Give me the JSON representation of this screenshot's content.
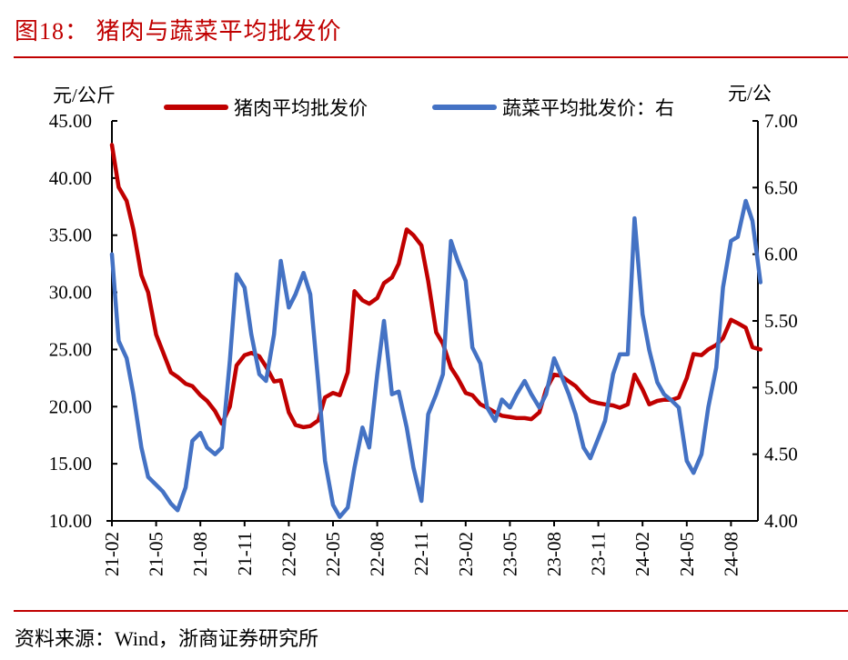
{
  "header": {
    "title": "图18：  猪肉与蔬菜平均批发价"
  },
  "footer": {
    "source": "资料来源：Wind，浙商证券研究所"
  },
  "colors": {
    "accent": "#C00000",
    "pork": "#C00000",
    "vegetable": "#4472C4"
  },
  "chart_data": {
    "type": "line",
    "title": "猪肉与蔬菜平均批发价",
    "y_left": {
      "unit_label": "元/公斤",
      "range": [
        10,
        45
      ],
      "ticks": [
        "10.00",
        "15.00",
        "20.00",
        "25.00",
        "30.00",
        "35.00",
        "40.00",
        "45.00"
      ]
    },
    "y_right": {
      "unit_label": "元/公",
      "range": [
        4,
        7
      ],
      "ticks": [
        "4.00",
        "4.50",
        "5.00",
        "5.50",
        "6.00",
        "6.50",
        "7.00"
      ]
    },
    "x_ticks": [
      "21-02",
      "21-05",
      "21-08",
      "21-11",
      "22-02",
      "22-05",
      "22-08",
      "22-11",
      "23-02",
      "23-05",
      "23-08",
      "23-11",
      "24-02",
      "24-05",
      "24-08"
    ],
    "grid": false,
    "legend_placement": "top",
    "x": [
      "2021-02-01",
      "2021-02-15",
      "2021-03-01",
      "2021-03-15",
      "2021-04-01",
      "2021-04-15",
      "2021-05-01",
      "2021-05-15",
      "2021-06-01",
      "2021-06-15",
      "2021-07-01",
      "2021-07-15",
      "2021-08-01",
      "2021-08-15",
      "2021-09-01",
      "2021-09-15",
      "2021-10-01",
      "2021-10-15",
      "2021-11-01",
      "2021-11-15",
      "2021-12-01",
      "2021-12-15",
      "2022-01-01",
      "2022-01-15",
      "2022-02-01",
      "2022-02-15",
      "2022-03-01",
      "2022-03-15",
      "2022-04-01",
      "2022-04-15",
      "2022-05-01",
      "2022-05-15",
      "2022-06-01",
      "2022-06-15",
      "2022-07-01",
      "2022-07-15",
      "2022-08-01",
      "2022-08-15",
      "2022-09-01",
      "2022-09-15",
      "2022-10-01",
      "2022-10-15",
      "2022-11-01",
      "2022-11-15",
      "2022-12-01",
      "2022-12-15",
      "2023-01-01",
      "2023-01-15",
      "2023-02-01",
      "2023-02-15",
      "2023-03-01",
      "2023-03-15",
      "2023-04-01",
      "2023-04-15",
      "2023-05-01",
      "2023-05-15",
      "2023-06-01",
      "2023-06-15",
      "2023-07-01",
      "2023-07-15",
      "2023-08-01",
      "2023-08-15",
      "2023-09-01",
      "2023-09-15",
      "2023-10-01",
      "2023-10-15",
      "2023-11-01",
      "2023-11-15",
      "2023-12-01",
      "2023-12-15",
      "2024-01-01",
      "2024-01-15",
      "2024-02-01",
      "2024-02-15",
      "2024-03-01",
      "2024-03-15",
      "2024-04-01",
      "2024-04-15",
      "2024-05-01",
      "2024-05-15",
      "2024-06-01",
      "2024-06-15",
      "2024-07-01",
      "2024-07-15",
      "2024-08-01",
      "2024-08-15",
      "2024-09-01",
      "2024-09-15",
      "2024-10-01"
    ],
    "series": [
      {
        "name": "猪肉平均批发价",
        "axis": "left",
        "color": "#C00000",
        "values": [
          42.9,
          39.2,
          38.0,
          35.5,
          31.5,
          30.0,
          26.3,
          24.8,
          23.0,
          22.6,
          22.0,
          21.8,
          21.0,
          20.5,
          19.6,
          18.5,
          20.0,
          23.6,
          24.5,
          24.7,
          24.4,
          23.5,
          22.2,
          22.3,
          19.5,
          18.4,
          18.2,
          18.3,
          18.8,
          20.8,
          21.2,
          21.0,
          23.0,
          30.1,
          29.3,
          29.0,
          29.5,
          30.8,
          31.3,
          32.5,
          35.5,
          35.0,
          34.1,
          31.0,
          26.5,
          25.5,
          23.4,
          22.5,
          21.2,
          21.0,
          20.2,
          19.9,
          19.5,
          19.2,
          19.1,
          19.0,
          19.0,
          18.9,
          19.5,
          21.5,
          22.8,
          22.7,
          22.2,
          21.8,
          21.0,
          20.5,
          20.3,
          20.2,
          20.1,
          19.9,
          20.2,
          22.8,
          21.5,
          20.2,
          20.5,
          20.6,
          20.6,
          20.8,
          22.5,
          24.6,
          24.5,
          25.0,
          25.4,
          26.0,
          27.6,
          27.3,
          26.9,
          25.2,
          25.0
        ]
      },
      {
        "name": "蔬菜平均批发价：右",
        "axis": "right",
        "color": "#4472C4",
        "values": [
          6.0,
          5.35,
          5.22,
          4.95,
          4.55,
          4.33,
          4.27,
          4.22,
          4.13,
          4.08,
          4.25,
          4.6,
          4.66,
          4.55,
          4.5,
          4.55,
          5.2,
          5.85,
          5.75,
          5.4,
          5.1,
          5.05,
          5.4,
          5.95,
          5.6,
          5.7,
          5.86,
          5.7,
          5.04,
          4.45,
          4.12,
          4.03,
          4.1,
          4.4,
          4.7,
          4.55,
          5.1,
          5.5,
          4.95,
          4.97,
          4.7,
          4.4,
          4.15,
          4.8,
          4.95,
          5.1,
          6.1,
          5.95,
          5.8,
          5.3,
          5.18,
          4.85,
          4.75,
          4.91,
          4.85,
          4.95,
          5.05,
          4.95,
          4.85,
          4.95,
          5.22,
          5.1,
          4.95,
          4.8,
          4.55,
          4.47,
          4.62,
          4.75,
          5.1,
          5.25,
          5.25,
          6.27,
          5.55,
          5.28,
          5.04,
          4.95,
          4.9,
          4.85,
          4.45,
          4.36,
          4.5,
          4.85,
          5.15,
          5.75,
          6.1,
          6.13,
          6.4,
          6.25,
          5.79
        ]
      }
    ]
  }
}
